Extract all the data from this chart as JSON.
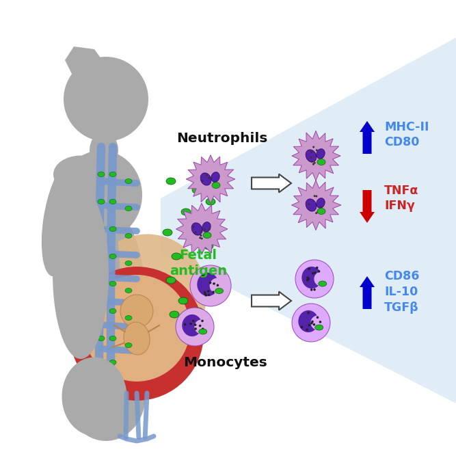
{
  "bg_color": "#ffffff",
  "light_cone_color": "#d8e8f4",
  "body_color": "#aaaaaa",
  "body_belly_color": "#deb887",
  "blood_vessel_color": "#7799cc",
  "fetus_outer_color": "#cc3333",
  "fetal_antigen_color": "#22bb22",
  "neutrophil_body_color": "#cc99cc",
  "monocyte_body_light": "#ddaaee",
  "monocyte_body_dark": "#bb88cc",
  "nucleus_color": "#5522aa",
  "text_neutrophils": "Neutrophils",
  "text_monocytes": "Monocytes",
  "text_fetal_antigen": "Fetal\nantigen",
  "text_mhc": "MHC-II\nCD80",
  "text_tnf": "TNFα\nIFNγ",
  "text_cd86": "CD86\nIL-10\nTGFβ",
  "arrow_up_color": "#0000cc",
  "arrow_down_color": "#cc0000",
  "label_blue_color": "#4488ee",
  "label_red_color": "#cc2222",
  "outline_color": "#888888"
}
